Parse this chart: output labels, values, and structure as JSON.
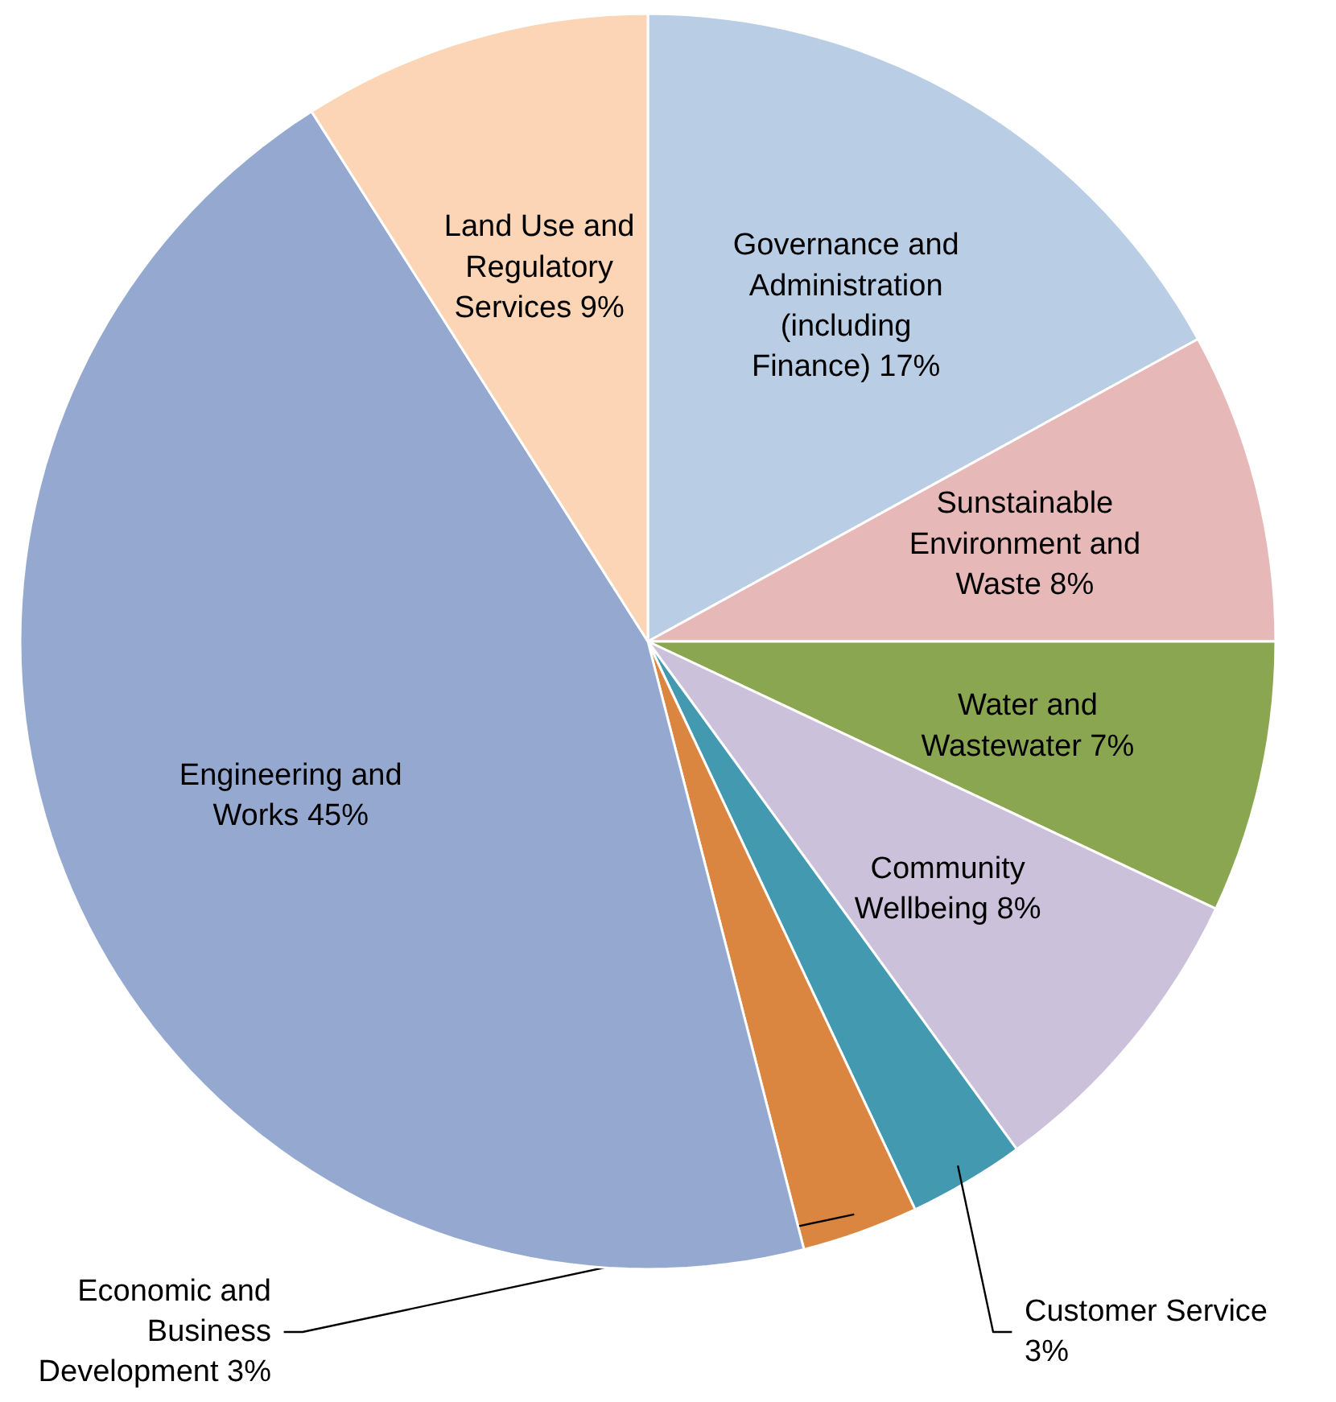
{
  "chart_data": {
    "type": "pie",
    "categories": [
      "Governance and Administration (including Finance)",
      "Sunstainable Environment and Waste",
      "Water and Wastewater",
      "Community Wellbeing",
      "Customer Service",
      "Economic and Business Development",
      "Engineering and Works",
      "Land Use and Regulatory Services"
    ],
    "values": [
      17,
      8,
      7,
      8,
      3,
      3,
      45,
      9
    ],
    "colors": [
      "#b9cde5",
      "#e6b9b8",
      "#8aa650",
      "#ccc1da",
      "#4299b0",
      "#da8640",
      "#95a9d0",
      "#fbd5b5"
    ],
    "value_labels": [
      "17%",
      "8%",
      "7%",
      "8%",
      "3%",
      "3%",
      "45%",
      "9%"
    ]
  }
}
